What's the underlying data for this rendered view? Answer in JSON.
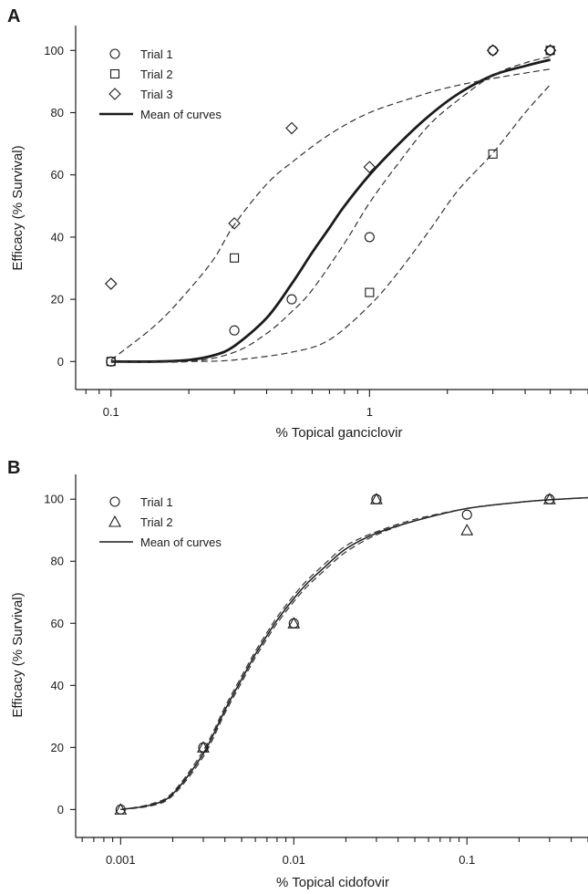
{
  "chart_data": [
    {
      "panel_label": "A",
      "type": "scatter",
      "xlabel": "% Topical ganciclovir",
      "ylabel": "Efficacy (% Survival)",
      "x_scale": "log",
      "xlim": [
        0.073,
        7.0
      ],
      "ylim": [
        -9,
        108
      ],
      "x_ticks": [
        0.1,
        1
      ],
      "x_tick_labels": [
        "0.1",
        "1"
      ],
      "y_ticks": [
        0,
        20,
        40,
        60,
        80,
        100
      ],
      "y_tick_labels": [
        "0",
        "20",
        "40",
        "60",
        "80",
        "100"
      ],
      "legend": {
        "position": "top-left",
        "entries": [
          {
            "label": "Trial 1",
            "marker": "circle"
          },
          {
            "label": "Trial 2",
            "marker": "square"
          },
          {
            "label": "Trial 3",
            "marker": "diamond"
          },
          {
            "label": "Mean of curves",
            "line": "solid-thick"
          }
        ]
      },
      "series": [
        {
          "name": "Trial 1",
          "marker": "circle",
          "x": [
            0.1,
            0.3,
            0.5,
            1,
            3,
            5
          ],
          "y": [
            0,
            10,
            20,
            40,
            100,
            100
          ]
        },
        {
          "name": "Trial 2",
          "marker": "square",
          "x": [
            0.1,
            0.3,
            1,
            3,
            5
          ],
          "y": [
            0,
            33.3,
            22.2,
            66.7,
            100
          ]
        },
        {
          "name": "Trial 3",
          "marker": "diamond",
          "x": [
            0.1,
            0.3,
            0.5,
            1,
            3,
            5
          ],
          "y": [
            25,
            44.4,
            75,
            62.5,
            100,
            100
          ]
        }
      ],
      "curves": [
        {
          "name": "Mean of curves",
          "style": "solid-thick",
          "x": [
            0.1,
            0.15,
            0.2,
            0.25,
            0.3,
            0.4,
            0.5,
            0.6,
            0.7,
            0.8,
            1,
            1.3,
            1.7,
            2.2,
            3,
            4,
            5
          ],
          "y": [
            0,
            0,
            0.5,
            2,
            5,
            14,
            25,
            35,
            43,
            50,
            60,
            70,
            79,
            86,
            92,
            95,
            97
          ]
        },
        {
          "style": "dashed",
          "x": [
            0.1,
            0.15,
            0.2,
            0.25,
            0.3,
            0.4,
            0.5,
            0.7,
            1,
            1.5,
            2,
            3,
            5
          ],
          "y": [
            0.5,
            12,
            23,
            33,
            44,
            57,
            64,
            73,
            80,
            85,
            88,
            91,
            94
          ]
        },
        {
          "style": "dashed",
          "x": [
            0.1,
            0.2,
            0.3,
            0.4,
            0.5,
            0.6,
            0.8,
            1,
            1.3,
            1.7,
            2.2,
            3,
            4,
            5
          ],
          "y": [
            0,
            0,
            3,
            9,
            16,
            23,
            38,
            51,
            64,
            76,
            84,
            92,
            96,
            98
          ]
        },
        {
          "style": "dashed",
          "x": [
            0.1,
            0.2,
            0.3,
            0.5,
            0.7,
            1,
            1.3,
            1.7,
            2.2,
            3,
            4,
            5
          ],
          "y": [
            0,
            0,
            0.5,
            3,
            7,
            18,
            29,
            42,
            55,
            67,
            80,
            89
          ]
        }
      ]
    },
    {
      "panel_label": "B",
      "type": "scatter",
      "xlabel": "% Topical cidofovir",
      "ylabel": "Efficacy (% Survival)",
      "x_scale": "log",
      "xlim": [
        0.00055,
        0.5
      ],
      "ylim": [
        -9,
        108
      ],
      "x_ticks": [
        0.001,
        0.01,
        0.1
      ],
      "x_tick_labels": [
        "0.001",
        "0.01",
        "0.1"
      ],
      "y_ticks": [
        0,
        20,
        40,
        60,
        80,
        100
      ],
      "y_tick_labels": [
        "0",
        "20",
        "40",
        "60",
        "80",
        "100"
      ],
      "legend": {
        "position": "top-left",
        "entries": [
          {
            "label": "Trial 1",
            "marker": "circle"
          },
          {
            "label": "Trial 2",
            "marker": "triangle"
          },
          {
            "label": "Mean of curves",
            "line": "solid-thin"
          }
        ]
      },
      "series": [
        {
          "name": "Trial 1",
          "marker": "circle",
          "x": [
            0.001,
            0.003,
            0.01,
            0.03,
            0.1,
            0.3
          ],
          "y": [
            0,
            20,
            60,
            100,
            95,
            100
          ]
        },
        {
          "name": "Trial 2",
          "marker": "triangle",
          "x": [
            0.001,
            0.003,
            0.01,
            0.03,
            0.1,
            0.3
          ],
          "y": [
            0,
            20,
            60,
            100,
            90,
            100
          ]
        }
      ],
      "curves": [
        {
          "name": "Mean of curves",
          "style": "solid-thin",
          "x": [
            0.001,
            0.0015,
            0.002,
            0.003,
            0.004,
            0.005,
            0.006,
            0.007,
            0.008,
            0.01,
            0.012,
            0.015,
            0.02,
            0.03,
            0.05,
            0.1,
            0.2,
            0.3,
            0.5
          ],
          "y": [
            0,
            1.5,
            5,
            18,
            32,
            42,
            50,
            56,
            61,
            68,
            73,
            78,
            84,
            89,
            93,
            97,
            99,
            99.8,
            100.5
          ]
        },
        {
          "style": "dashed",
          "x": [
            0.001,
            0.0015,
            0.002,
            0.003,
            0.004,
            0.005,
            0.006,
            0.007,
            0.008,
            0.01,
            0.012,
            0.015,
            0.02,
            0.03,
            0.05,
            0.1,
            0.2,
            0.3,
            0.5
          ],
          "y": [
            0,
            1.2,
            4.5,
            17,
            31,
            41,
            49,
            55,
            60,
            67,
            72,
            77,
            83,
            88.5,
            93,
            97,
            99,
            99.8,
            100.5
          ]
        },
        {
          "style": "dashed",
          "x": [
            0.001,
            0.0015,
            0.002,
            0.003,
            0.004,
            0.005,
            0.006,
            0.007,
            0.008,
            0.01,
            0.012,
            0.015,
            0.02,
            0.03,
            0.05,
            0.1,
            0.2,
            0.3,
            0.5
          ],
          "y": [
            0,
            1.8,
            5.5,
            19,
            33,
            43,
            51,
            57,
            62,
            69,
            74,
            79,
            85,
            89.5,
            93.5,
            97,
            99,
            99.8,
            100.5
          ]
        }
      ]
    }
  ]
}
